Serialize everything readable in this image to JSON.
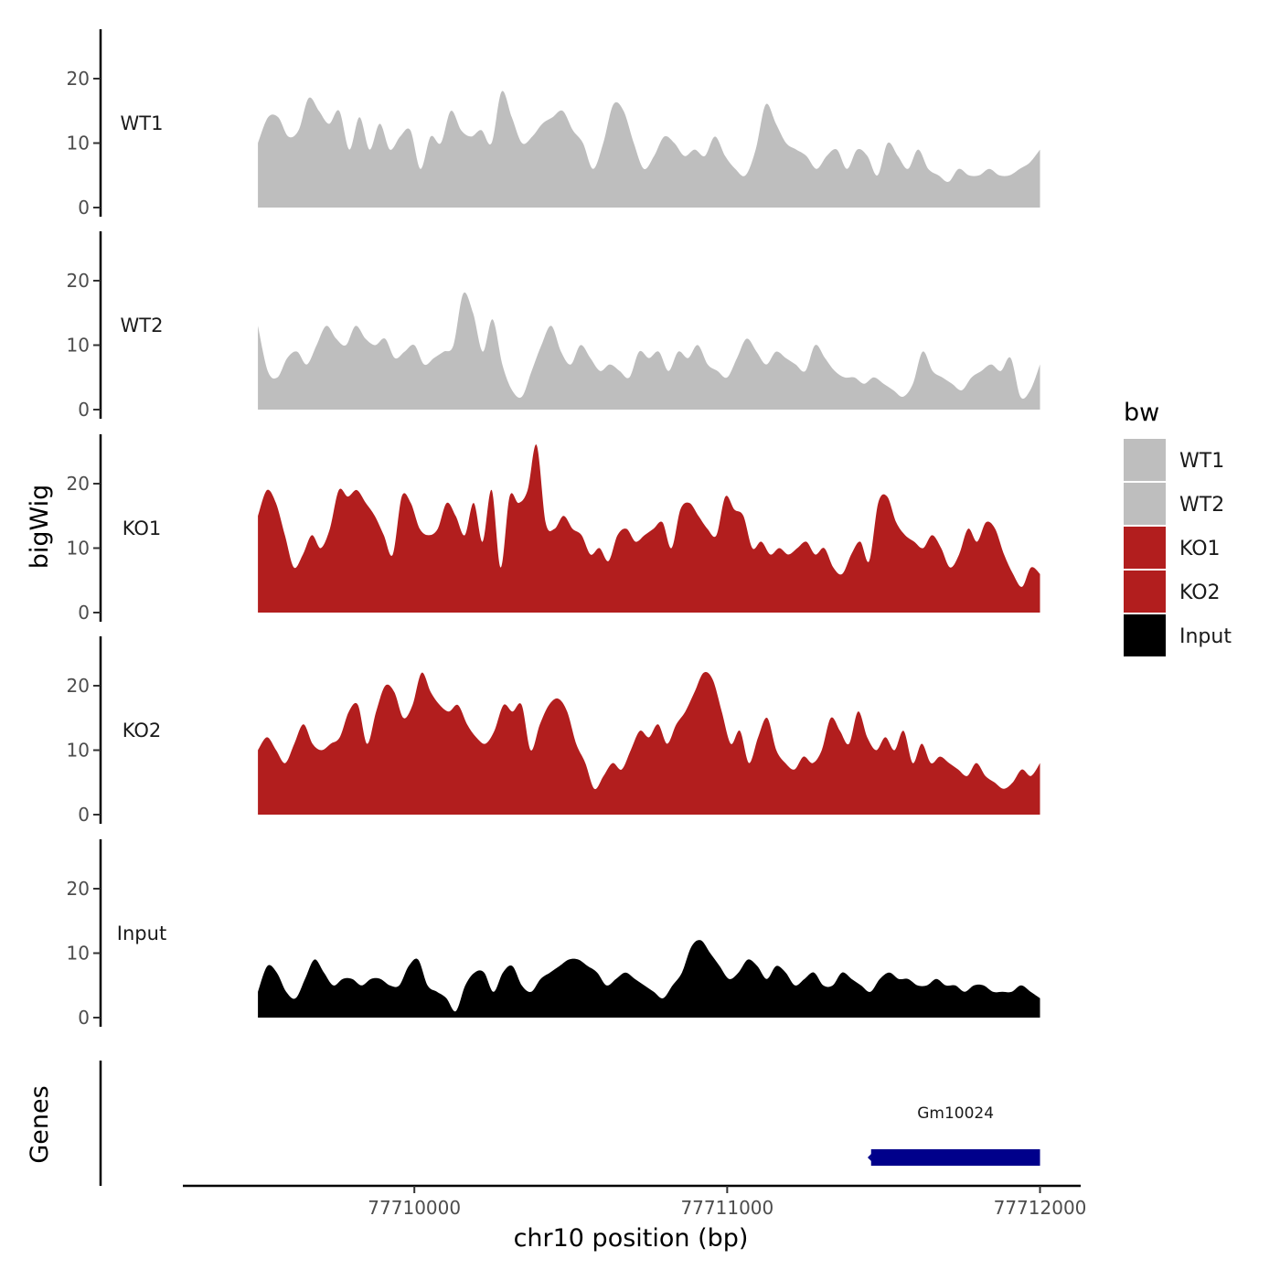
{
  "chart_data": {
    "type": "area",
    "title": "",
    "ylabel": "bigWig",
    "genes_label": "Genes",
    "xlabel": "chr10 position (bp)",
    "xlim": [
      77709260,
      77712130
    ],
    "ylim": [
      0,
      27
    ],
    "x_ticks": [
      {
        "value": 77710000,
        "label": "77710000"
      },
      {
        "value": 77711000,
        "label": "77711000"
      },
      {
        "value": 77712000,
        "label": "77712000"
      }
    ],
    "y_ticks": [
      {
        "value": 0,
        "label": "0"
      },
      {
        "value": 10,
        "label": "10"
      },
      {
        "value": 20,
        "label": "20"
      }
    ],
    "legend": {
      "title": "bw",
      "entries": [
        {
          "label": "WT1",
          "color": "#bebebe"
        },
        {
          "label": "WT2",
          "color": "#bebebe"
        },
        {
          "label": "KO1",
          "color": "#b21e1e"
        },
        {
          "label": "KO2",
          "color": "#b21e1e"
        },
        {
          "label": "Input",
          "color": "#000000"
        }
      ]
    },
    "series": [
      {
        "name": "WT1",
        "color": "#bebebe",
        "x_start": 77709500,
        "x_end": 77712000,
        "values": [
          10,
          14,
          14,
          11,
          12,
          17,
          15,
          13,
          15,
          9,
          14,
          9,
          13,
          9,
          11,
          12,
          6,
          11,
          10,
          15,
          12,
          11,
          12,
          10,
          18,
          14,
          10,
          11,
          13,
          14,
          15,
          12,
          10,
          6,
          10,
          16,
          15,
          10,
          6,
          8,
          11,
          10,
          8,
          9,
          8,
          11,
          8,
          6,
          5,
          9,
          16,
          13,
          10,
          9,
          8,
          6,
          8,
          9,
          6,
          9,
          8,
          5,
          10,
          8,
          6,
          9,
          6,
          5,
          4,
          6,
          5,
          5,
          6,
          5,
          5,
          6,
          7,
          9
        ]
      },
      {
        "name": "WT2",
        "color": "#bebebe",
        "x_start": 77709500,
        "x_end": 77712000,
        "values": [
          13,
          6,
          5,
          8,
          9,
          7,
          10,
          13,
          11,
          10,
          13,
          11,
          10,
          11,
          8,
          9,
          10,
          7,
          8,
          9,
          10,
          18,
          15,
          9,
          14,
          7,
          3,
          2,
          6,
          10,
          13,
          9,
          7,
          10,
          8,
          6,
          7,
          6,
          5,
          9,
          8,
          9,
          6,
          9,
          8,
          10,
          7,
          6,
          5,
          8,
          11,
          9,
          7,
          9,
          8,
          7,
          6,
          10,
          8,
          6,
          5,
          5,
          4,
          5,
          4,
          3,
          2,
          4,
          9,
          6,
          5,
          4,
          3,
          5,
          6,
          7,
          6,
          8,
          2,
          3,
          7
        ]
      },
      {
        "name": "KO1",
        "color": "#b21e1e",
        "x_start": 77709500,
        "x_end": 77712000,
        "values": [
          15,
          19,
          17,
          12,
          7,
          9,
          12,
          10,
          13,
          19,
          18,
          19,
          17,
          15,
          12,
          9,
          18,
          17,
          13,
          12,
          13,
          17,
          15,
          12,
          17,
          11,
          19,
          7,
          18,
          17,
          19,
          26,
          14,
          13,
          15,
          13,
          12,
          9,
          10,
          8,
          12,
          13,
          11,
          12,
          13,
          14,
          10,
          16,
          17,
          15,
          13,
          12,
          18,
          16,
          15,
          10,
          11,
          9,
          10,
          9,
          10,
          11,
          9,
          10,
          7,
          6,
          9,
          11,
          8,
          17,
          18,
          14,
          12,
          11,
          10,
          12,
          10,
          7,
          9,
          13,
          11,
          14,
          13,
          9,
          6,
          4,
          7,
          6
        ]
      },
      {
        "name": "KO2",
        "color": "#b21e1e",
        "x_start": 77709500,
        "x_end": 77712000,
        "values": [
          10,
          12,
          10,
          8,
          11,
          14,
          11,
          10,
          11,
          12,
          16,
          17,
          11,
          16,
          20,
          19,
          15,
          17,
          22,
          19,
          17,
          16,
          17,
          14,
          12,
          11,
          13,
          17,
          16,
          17,
          10,
          14,
          17,
          18,
          16,
          11,
          8,
          4,
          6,
          8,
          7,
          10,
          13,
          12,
          14,
          11,
          14,
          16,
          19,
          22,
          21,
          16,
          11,
          13,
          8,
          12,
          15,
          10,
          8,
          7,
          9,
          8,
          10,
          15,
          13,
          11,
          16,
          12,
          10,
          12,
          10,
          13,
          8,
          11,
          8,
          9,
          8,
          7,
          6,
          8,
          6,
          5,
          4,
          5,
          7,
          6,
          8
        ]
      },
      {
        "name": "Input",
        "color": "#000000",
        "x_start": 77709500,
        "x_end": 77712000,
        "values": [
          4,
          8,
          7,
          4,
          3,
          6,
          9,
          7,
          5,
          6,
          6,
          5,
          6,
          6,
          5,
          5,
          8,
          9,
          5,
          4,
          3,
          1,
          5,
          7,
          7,
          4,
          7,
          8,
          5,
          4,
          6,
          7,
          8,
          9,
          9,
          8,
          7,
          5,
          6,
          7,
          6,
          5,
          4,
          3,
          5,
          7,
          11,
          12,
          10,
          8,
          6,
          7,
          9,
          8,
          6,
          8,
          7,
          5,
          6,
          7,
          5,
          5,
          7,
          6,
          5,
          4,
          6,
          7,
          6,
          6,
          5,
          5,
          6,
          5,
          5,
          4,
          5,
          5,
          4,
          4,
          4,
          5,
          4,
          3
        ]
      }
    ],
    "genes": [
      {
        "name": "Gm10024",
        "start": 77711460,
        "end": 77712000,
        "strand": "-",
        "color": "#00008b"
      }
    ]
  }
}
